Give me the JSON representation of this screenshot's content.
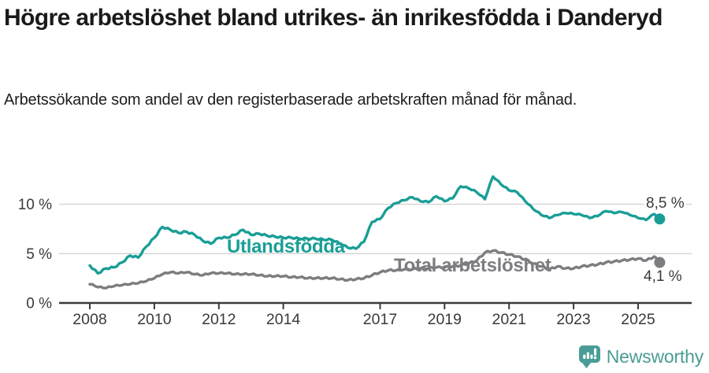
{
  "page": {
    "title": "Högre arbetslöshet bland utrikes- än inrikesfödda i Danderyd",
    "subtitle": "Arbetssökande som andel av den registerbaserade arbetskraften månad för månad."
  },
  "branding": {
    "logo_text": "Newsworthy",
    "logo_icon": "bar-chart-speech-bubble",
    "logo_color": "#4a9d96"
  },
  "chart_data": {
    "type": "line",
    "title": "Högre arbetslöshet bland utrikes- än inrikesfödda i Danderyd",
    "xlabel": "",
    "ylabel": "",
    "grid": "horizontal",
    "legend_position": "inline-labels",
    "xlim": [
      2007.05,
      2026.65
    ],
    "ylim": [
      0,
      13.5
    ],
    "y_gridlines": [
      5,
      10
    ],
    "y_ticks": [
      {
        "value": 0,
        "label": "0 %"
      },
      {
        "value": 5,
        "label": "5 %"
      },
      {
        "value": 10,
        "label": "10 %"
      }
    ],
    "x_ticks": [
      2008,
      2010,
      2012,
      2014,
      2017,
      2019,
      2021,
      2023,
      2025
    ],
    "x": [
      2008,
      2008.25,
      2008.5,
      2008.75,
      2009,
      2009.25,
      2009.5,
      2009.75,
      2010,
      2010.25,
      2010.5,
      2010.75,
      2011,
      2011.25,
      2011.5,
      2011.75,
      2012,
      2012.25,
      2012.5,
      2012.75,
      2013,
      2013.25,
      2013.5,
      2013.75,
      2014,
      2014.25,
      2014.5,
      2014.75,
      2015,
      2015.25,
      2015.5,
      2015.75,
      2016,
      2016.25,
      2016.5,
      2016.75,
      2017,
      2017.25,
      2017.5,
      2017.75,
      2018,
      2018.25,
      2018.5,
      2018.75,
      2019,
      2019.25,
      2019.5,
      2019.75,
      2020,
      2020.25,
      2020.5,
      2020.75,
      2021,
      2021.25,
      2021.5,
      2021.75,
      2022,
      2022.25,
      2022.5,
      2022.75,
      2023,
      2023.25,
      2023.5,
      2023.75,
      2024,
      2024.25,
      2024.5,
      2024.75,
      2025,
      2025.25,
      2025.5,
      2025.67
    ],
    "series": [
      {
        "id": "utlandsfodda",
        "name": "Utlandsfödda",
        "color": "#1a9e96",
        "end_label": "8,5 %",
        "end_value": 8.5,
        "values": [
          3.8,
          3.0,
          3.5,
          3.6,
          4.1,
          4.8,
          4.6,
          5.7,
          6.6,
          7.7,
          7.4,
          7.1,
          7.2,
          6.9,
          6.3,
          6.0,
          6.6,
          6.6,
          6.9,
          7.4,
          6.9,
          7.0,
          6.8,
          6.7,
          6.6,
          6.6,
          6.5,
          6.5,
          6.5,
          6.4,
          6.4,
          6.0,
          5.6,
          5.5,
          6.2,
          8.2,
          8.5,
          9.6,
          10.1,
          10.4,
          10.7,
          10.3,
          10.2,
          10.8,
          10.3,
          10.6,
          11.8,
          11.6,
          11.2,
          10.5,
          12.8,
          12.0,
          11.4,
          11.2,
          10.3,
          9.5,
          8.9,
          8.6,
          8.9,
          9.1,
          9.0,
          8.9,
          8.6,
          8.8,
          9.3,
          9.1,
          9.2,
          8.9,
          8.6,
          8.4,
          9.0,
          8.5
        ]
      },
      {
        "id": "total",
        "name": "Total arbetslöshet",
        "color": "#7d7d81",
        "end_label": "4,1 %",
        "end_value": 4.1,
        "values": [
          1.9,
          1.6,
          1.5,
          1.7,
          1.8,
          1.9,
          2.0,
          2.2,
          2.5,
          2.9,
          3.1,
          3.0,
          3.1,
          2.9,
          2.8,
          3.0,
          3.0,
          3.0,
          2.9,
          2.9,
          2.9,
          2.8,
          2.7,
          2.7,
          2.7,
          2.6,
          2.6,
          2.5,
          2.5,
          2.5,
          2.5,
          2.4,
          2.3,
          2.4,
          2.5,
          2.8,
          3.1,
          3.3,
          3.3,
          3.4,
          3.4,
          3.5,
          3.5,
          3.6,
          3.6,
          3.7,
          3.8,
          4.0,
          4.3,
          5.1,
          5.3,
          5.1,
          4.9,
          4.7,
          4.4,
          4.0,
          3.7,
          3.4,
          3.7,
          3.5,
          3.5,
          3.7,
          3.8,
          3.9,
          4.1,
          4.2,
          4.3,
          4.4,
          4.5,
          4.3,
          4.7,
          4.1
        ]
      }
    ]
  }
}
